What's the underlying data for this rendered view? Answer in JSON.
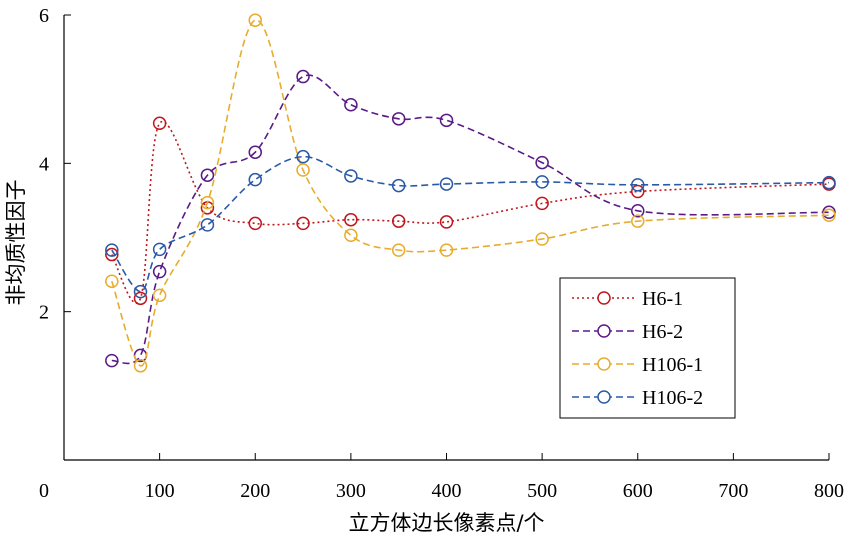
{
  "chart_data": {
    "type": "line",
    "title": "",
    "xlabel": "立方体边长像素点/个",
    "ylabel": "非均质性因子",
    "xlim": [
      0,
      800
    ],
    "ylim": [
      0,
      6
    ],
    "x_ticks": [
      0,
      100,
      200,
      300,
      400,
      500,
      600,
      700,
      800
    ],
    "y_ticks": [
      2,
      4,
      6
    ],
    "grid": false,
    "legend_position": "lower-right",
    "series": [
      {
        "name": "H6-1",
        "color": "#c0161c",
        "line_style": "dotted",
        "marker": "circle",
        "x": [
          50,
          80,
          100,
          150,
          200,
          250,
          300,
          350,
          400,
          500,
          600,
          800
        ],
        "y": [
          2.77,
          2.18,
          4.54,
          3.4,
          3.19,
          3.19,
          3.24,
          3.22,
          3.21,
          3.46,
          3.62,
          3.72
        ]
      },
      {
        "name": "H6-2",
        "color": "#5a1b87",
        "line_style": "dashed",
        "marker": "circle",
        "x": [
          50,
          80,
          100,
          150,
          200,
          250,
          300,
          350,
          400,
          500,
          600,
          800
        ],
        "y": [
          1.34,
          1.41,
          2.54,
          3.84,
          4.15,
          5.17,
          4.79,
          4.6,
          4.58,
          4.01,
          3.36,
          3.34
        ]
      },
      {
        "name": "H106-1",
        "color": "#e8ac2d",
        "line_style": "dashed",
        "marker": "circle",
        "x": [
          50,
          80,
          100,
          150,
          200,
          250,
          300,
          350,
          400,
          500,
          600,
          800
        ],
        "y": [
          2.41,
          1.27,
          2.22,
          3.47,
          5.93,
          3.91,
          3.03,
          2.83,
          2.83,
          2.98,
          3.22,
          3.3
        ]
      },
      {
        "name": "H106-2",
        "color": "#2a5aa6",
        "line_style": "dashed",
        "marker": "circle",
        "x": [
          50,
          80,
          100,
          150,
          200,
          250,
          300,
          350,
          400,
          500,
          600,
          800
        ],
        "y": [
          2.83,
          2.27,
          2.84,
          3.17,
          3.78,
          4.09,
          3.83,
          3.7,
          3.72,
          3.75,
          3.71,
          3.74
        ]
      }
    ]
  }
}
